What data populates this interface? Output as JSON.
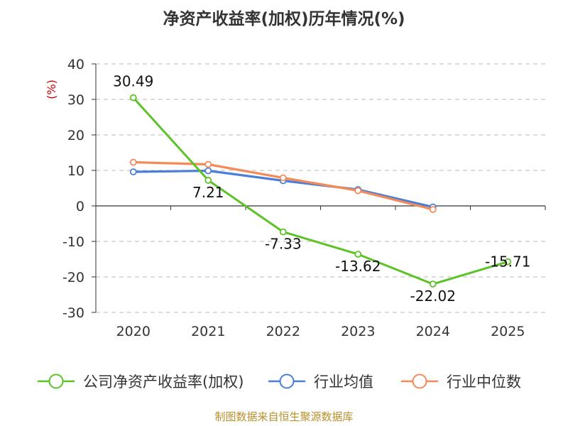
{
  "chart_data": {
    "type": "line",
    "title": "净资产收益率(加权)历年情况(%)",
    "ylabel": "(%)",
    "xlabel": "",
    "categories": [
      "2020",
      "2021",
      "2022",
      "2023",
      "2024",
      "2025"
    ],
    "ylim": [
      -30,
      40
    ],
    "yticks": [
      40,
      30,
      20,
      10,
      0,
      -10,
      -20,
      -30
    ],
    "grid": true,
    "legend_position": "bottom",
    "series": [
      {
        "name": "公司净资产收益率(加权)",
        "color": "#5cc326",
        "values": [
          30.49,
          7.21,
          -7.33,
          -13.62,
          -22.02,
          -15.71
        ],
        "labels": [
          "30.49",
          "7.21",
          "-7.33",
          "-13.62",
          "-22.02",
          "-15.71"
        ]
      },
      {
        "name": "行业均值",
        "color": "#4a7ed8",
        "values": [
          9.6,
          9.9,
          7.1,
          4.6,
          -0.3,
          null
        ]
      },
      {
        "name": "行业中位数",
        "color": "#f48a57",
        "values": [
          12.3,
          11.7,
          7.9,
          4.3,
          -1.0,
          null
        ]
      }
    ],
    "source": "制图数据来自恒生聚源数据库"
  }
}
